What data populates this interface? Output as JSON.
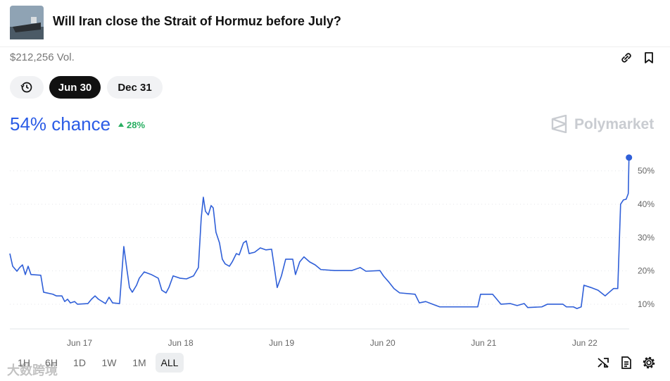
{
  "header": {
    "title": "Will Iran close the Strait of Hormuz before July?",
    "volume": "$212,256 Vol."
  },
  "date_tabs": [
    "Jun 30",
    "Dec 31"
  ],
  "selected_tab": "Jun 30",
  "chance": {
    "label": "54% chance",
    "change": "28%"
  },
  "brand": "Polymarket",
  "range_buttons": [
    "1H",
    "6H",
    "1D",
    "1W",
    "1M",
    "ALL"
  ],
  "selected_range": "ALL",
  "watermark": "大数跨境",
  "chart_data": {
    "type": "line",
    "color": "#2f5fd8",
    "grid": true,
    "x": [
      16.31,
      16.338,
      16.38,
      16.407,
      16.435,
      16.463,
      16.491,
      16.519,
      16.616,
      16.644,
      16.735,
      16.77,
      16.825,
      16.853,
      16.881,
      16.909,
      16.951,
      16.979,
      17.083,
      17.118,
      17.153,
      17.187,
      17.257,
      17.292,
      17.327,
      17.396,
      17.438,
      17.466,
      17.494,
      17.522,
      17.564,
      17.591,
      17.64,
      17.71,
      17.779,
      17.814,
      17.856,
      17.884,
      17.926,
      17.995,
      18.058,
      18.128,
      18.176,
      18.204,
      18.225,
      18.246,
      18.274,
      18.302,
      18.323,
      18.35,
      18.385,
      18.413,
      18.441,
      18.483,
      18.511,
      18.552,
      18.58,
      18.622,
      18.65,
      18.678,
      18.733,
      18.789,
      18.845,
      18.901,
      18.928,
      18.956,
      18.998,
      19.04,
      19.11,
      19.137,
      19.179,
      19.221,
      19.277,
      19.332,
      19.388,
      19.527,
      19.695,
      19.778,
      19.834,
      19.973,
      20.008,
      20.057,
      20.112,
      20.168,
      20.321,
      20.363,
      20.426,
      20.495,
      20.565,
      20.739,
      20.941,
      20.969,
      21.088,
      21.171,
      21.262,
      21.331,
      21.401,
      21.436,
      21.575,
      21.63,
      21.784,
      21.819,
      21.888,
      21.923,
      21.965,
      21.992,
      22.062,
      22.132,
      22.202,
      22.243,
      22.285,
      22.327,
      22.355,
      22.383,
      22.41,
      22.431,
      22.438
    ],
    "values": [
      25.2,
      21.4,
      19.9,
      21,
      21.8,
      18.9,
      21.4,
      18.9,
      18.7,
      13.6,
      13,
      12.5,
      12.5,
      10.8,
      11.5,
      10.4,
      10.8,
      10,
      10.2,
      11.5,
      12.5,
      11.5,
      10.2,
      12.1,
      10.4,
      10.2,
      27.3,
      21,
      15,
      13.6,
      15.7,
      17.8,
      19.7,
      18.9,
      17.8,
      14.2,
      13.4,
      15,
      18.5,
      17.8,
      17.6,
      18.5,
      21,
      35.8,
      42.1,
      37.9,
      36.8,
      39.6,
      38.9,
      31.6,
      28.4,
      23.5,
      22.1,
      21.4,
      22.7,
      25.2,
      24.8,
      28.4,
      29,
      25.2,
      25.6,
      26.9,
      26.3,
      26.5,
      21,
      15,
      18.5,
      23.5,
      23.5,
      18.9,
      22.7,
      24.2,
      22.7,
      21.8,
      20.4,
      20.1,
      20.1,
      21,
      19.9,
      20.1,
      18.5,
      16.8,
      14.7,
      13.4,
      13,
      10.4,
      10.8,
      10,
      9.2,
      9.2,
      9.2,
      13,
      13,
      10,
      10.2,
      9.6,
      10.2,
      9,
      9.2,
      10,
      10,
      9.2,
      9.2,
      8.7,
      9.2,
      15.7,
      15,
      14.2,
      12.5,
      13.6,
      14.7,
      14.7,
      40,
      41.3,
      41.5,
      43.2,
      54
    ],
    "xlim": [
      16.31,
      22.44
    ],
    "xticks": [
      {
        "value": 17,
        "label": "Jun 17"
      },
      {
        "value": 18,
        "label": "Jun 18"
      },
      {
        "value": 19,
        "label": "Jun 19"
      },
      {
        "value": 20,
        "label": "Jun 20"
      },
      {
        "value": 21,
        "label": "Jun 21"
      },
      {
        "value": 22,
        "label": "Jun 22"
      }
    ],
    "ylim": [
      2.6,
      55
    ],
    "yticks": [
      {
        "value": 10,
        "label": "10%"
      },
      {
        "value": 20,
        "label": "20%"
      },
      {
        "value": 30,
        "label": "30%"
      },
      {
        "value": 40,
        "label": "40%"
      },
      {
        "value": 50,
        "label": "50%"
      }
    ]
  }
}
